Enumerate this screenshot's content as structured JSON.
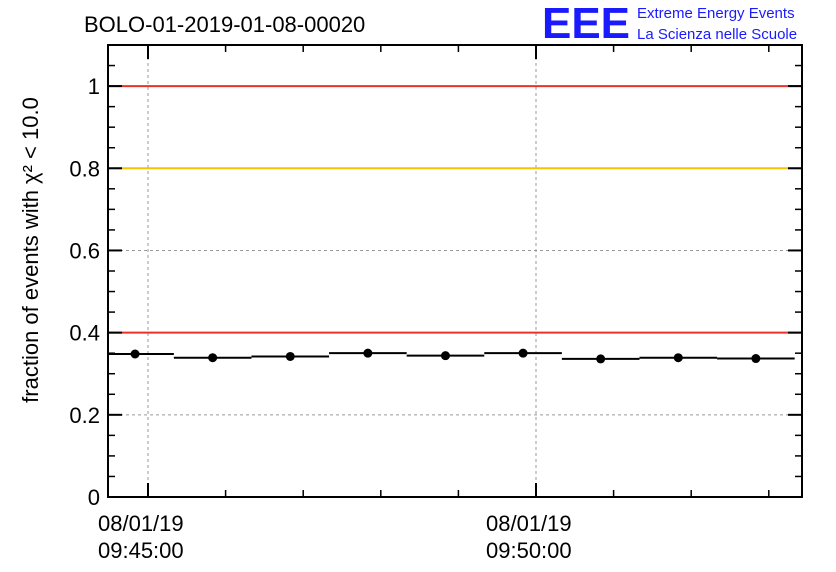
{
  "chart_data": {
    "type": "scatter",
    "title": "BOLO-01-2019-01-08-00020",
    "ylabel": "fraction of events with χ² < 10.0",
    "xlabel": "",
    "ylim": [
      0,
      1.1
    ],
    "y_ticks": [
      "0",
      "0.2",
      "0.4",
      "0.6",
      "0.8",
      "1"
    ],
    "x_ticks": [
      {
        "date": "08/01/19",
        "time": "09:45:00"
      },
      {
        "date": "08/01/19",
        "time": "09:50:00"
      }
    ],
    "grid": true,
    "reference_lines": [
      {
        "y": 1.0,
        "color": "#e8322a"
      },
      {
        "y": 0.8,
        "color": "#f5c400"
      },
      {
        "y": 0.4,
        "color": "#e8322a"
      }
    ],
    "series": [
      {
        "x": [
          "09:44:50",
          "09:45:50",
          "09:46:50",
          "09:47:50",
          "09:48:50",
          "09:49:50",
          "09:50:50",
          "09:51:50",
          "09:52:50"
        ],
        "x_error_half_width_s": 30,
        "values": [
          0.348,
          0.339,
          0.342,
          0.35,
          0.344,
          0.35,
          0.336,
          0.339,
          0.337
        ],
        "color": "#000000"
      }
    ]
  },
  "logo": {
    "mark": "EEE",
    "line1": "Extreme Energy Events",
    "line2": "La Scienza nelle Scuole",
    "color": "#1a1aff"
  }
}
